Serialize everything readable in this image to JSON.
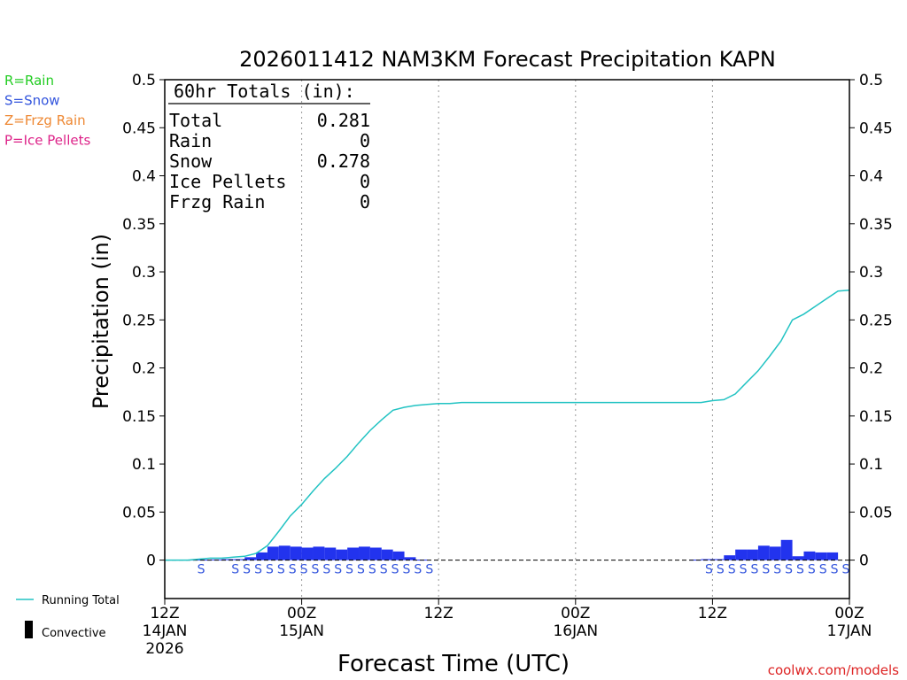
{
  "chart_data": {
    "type": "bar",
    "title": "2026011412 NAM3KM Forecast Precipitation KAPN",
    "ylabel": "Precipitation (in)",
    "xlabel": "Forecast Time (UTC)",
    "ylim": [
      -0.04,
      0.5
    ],
    "yticks": [
      0,
      0.05,
      0.1,
      0.15,
      0.2,
      0.25,
      0.3,
      0.35,
      0.4,
      0.45,
      0.5
    ],
    "ytick_labels": [
      "0",
      "0.05",
      "0.1",
      "0.15",
      "0.2",
      "0.25",
      "0.3",
      "0.35",
      "0.4",
      "0.45",
      "0.5"
    ],
    "xlim_hours": [
      0,
      60
    ],
    "xticks": [
      {
        "hour": 0,
        "lines": [
          "12Z",
          "14JAN",
          "2026"
        ]
      },
      {
        "hour": 12,
        "lines": [
          "00Z",
          "15JAN"
        ]
      },
      {
        "hour": 24,
        "lines": [
          "12Z"
        ]
      },
      {
        "hour": 36,
        "lines": [
          "00Z",
          "16JAN"
        ]
      },
      {
        "hour": 48,
        "lines": [
          "12Z"
        ]
      },
      {
        "hour": 60,
        "lines": [
          "00Z",
          "17JAN"
        ]
      }
    ],
    "legend": [
      {
        "label": "R=Rain",
        "color": "#22cc22"
      },
      {
        "label": "S=Snow",
        "color": "#3355dd"
      },
      {
        "label": "Z=Frzg Rain",
        "color": "#ee8833"
      },
      {
        "label": "P=Ice Pellets",
        "color": "#dd2288"
      }
    ],
    "bottom_legend": {
      "running_total_label": "Running Total",
      "convective_label": "Convective"
    },
    "totals_box": {
      "header": "60hr Totals (in):",
      "rows": [
        {
          "label": "Total",
          "value": "0.281"
        },
        {
          "label": "Rain",
          "value": "0"
        },
        {
          "label": "Snow",
          "value": "0.278"
        },
        {
          "label": "Ice Pellets",
          "value": "0"
        },
        {
          "label": "Frzg Rain",
          "value": "0"
        }
      ]
    },
    "series": [
      {
        "name": "Running Total",
        "type": "line",
        "color": "#22c3c3",
        "points": [
          [
            0,
            0
          ],
          [
            1,
            0
          ],
          [
            2,
            0
          ],
          [
            3,
            0.001
          ],
          [
            4,
            0.002
          ],
          [
            5,
            0.002
          ],
          [
            6,
            0.003
          ],
          [
            7,
            0.004
          ],
          [
            8,
            0.007
          ],
          [
            9,
            0.015
          ],
          [
            10,
            0.03
          ],
          [
            11,
            0.046
          ],
          [
            12,
            0.058
          ],
          [
            13,
            0.072
          ],
          [
            14,
            0.085
          ],
          [
            15,
            0.096
          ],
          [
            16,
            0.108
          ],
          [
            17,
            0.122
          ],
          [
            18,
            0.135
          ],
          [
            19,
            0.146
          ],
          [
            20,
            0.156
          ],
          [
            21,
            0.159
          ],
          [
            22,
            0.161
          ],
          [
            23,
            0.162
          ],
          [
            24,
            0.163
          ],
          [
            25,
            0.163
          ],
          [
            26,
            0.164
          ],
          [
            27,
            0.164
          ],
          [
            28,
            0.164
          ],
          [
            29,
            0.164
          ],
          [
            30,
            0.164
          ],
          [
            40,
            0.164
          ],
          [
            46,
            0.164
          ],
          [
            47,
            0.164
          ],
          [
            48,
            0.166
          ],
          [
            49,
            0.167
          ],
          [
            50,
            0.173
          ],
          [
            51,
            0.185
          ],
          [
            52,
            0.197
          ],
          [
            53,
            0.212
          ],
          [
            54,
            0.228
          ],
          [
            55,
            0.25
          ],
          [
            56,
            0.256
          ],
          [
            57,
            0.264
          ],
          [
            58,
            0.272
          ],
          [
            59,
            0.28
          ],
          [
            60,
            0.281
          ]
        ]
      },
      {
        "name": "Hourly Snow",
        "type": "bar",
        "color": "#2233ee",
        "hours": [
          1,
          2,
          3,
          4,
          5,
          6,
          7,
          8,
          9,
          10,
          11,
          12,
          13,
          14,
          15,
          16,
          17,
          18,
          19,
          20,
          21,
          22,
          23,
          47,
          48,
          49,
          50,
          51,
          52,
          53,
          54,
          55,
          56,
          57,
          58,
          59,
          60
        ],
        "values": [
          0,
          0,
          0.0005,
          0.0005,
          0.0007,
          0.001,
          0.001,
          0.003,
          0.008,
          0.014,
          0.015,
          0.014,
          0.013,
          0.014,
          0.013,
          0.011,
          0.013,
          0.014,
          0.013,
          0.011,
          0.009,
          0.003,
          0.0005,
          0.0005,
          0.001,
          0.001,
          0.005,
          0.011,
          0.011,
          0.015,
          0.014,
          0.021,
          0.004,
          0.009,
          0.008,
          0.008,
          0
        ]
      }
    ],
    "precip_type_row": {
      "symbol": "S",
      "hours": [
        3.5,
        6.5,
        7.5,
        8.5,
        9.5,
        10.5,
        11.5,
        12.5,
        13.5,
        14.5,
        15.5,
        16.5,
        17.5,
        18.5,
        19.5,
        20.5,
        21.5,
        22.5,
        23.5,
        48,
        49,
        50,
        51,
        52,
        53,
        54,
        55,
        56,
        57,
        58,
        59,
        60
      ]
    },
    "credit": "coolwx.com/models"
  }
}
